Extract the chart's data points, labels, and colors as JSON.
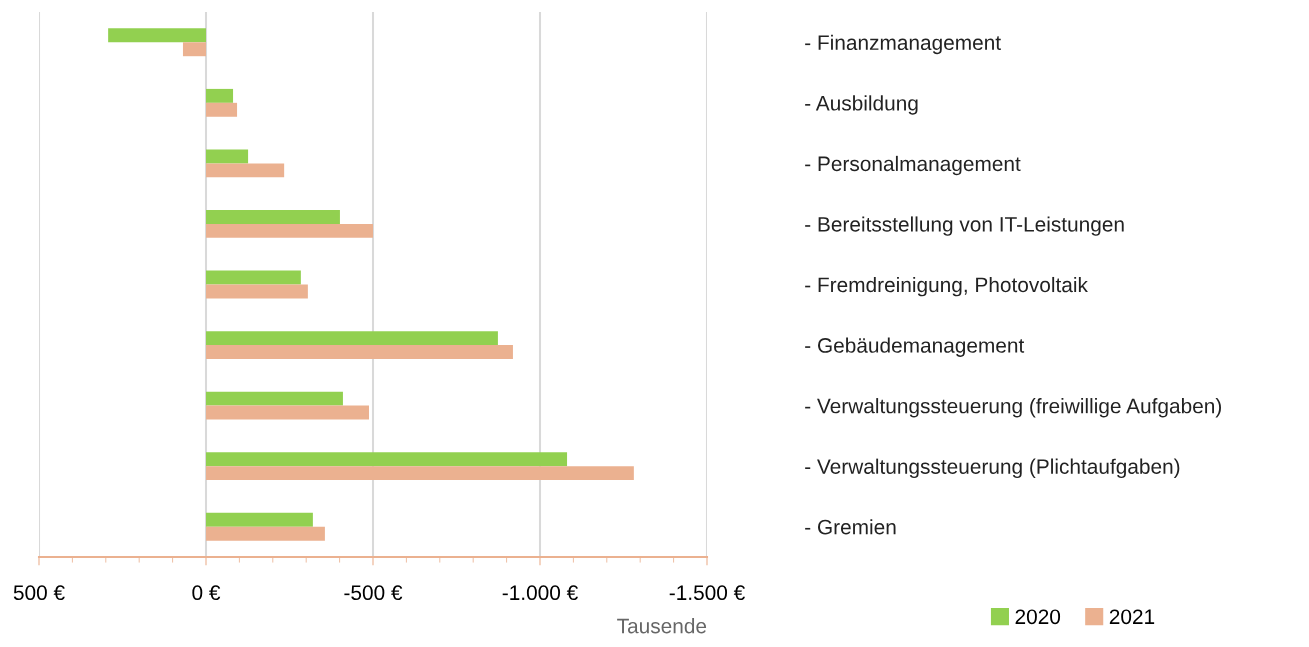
{
  "chart_data": {
    "type": "bar",
    "orientation": "horizontal",
    "categories": [
      "- Finanzmanagement",
      "- Ausbildung",
      "- Personalmanagement",
      "- Bereitsstellung von IT-Leistungen",
      "- Fremdreinigung, Photovoltaik",
      "- Gebäudemanagement",
      "- Verwaltungssteuerung (freiwillige Aufgaben)",
      "- Verwaltungssteuerung (Plichtaufgaben)",
      "- Gremien"
    ],
    "series": [
      {
        "name": "2020",
        "color": "#92d050",
        "values": [
          293,
          -81,
          -126,
          -401,
          -284,
          -874,
          -410,
          -1081,
          -320
        ]
      },
      {
        "name": "2021",
        "color": "#ebb190",
        "values": [
          69,
          -93,
          -234,
          -500,
          -305,
          -919,
          -488,
          -1281,
          -356
        ]
      }
    ],
    "xlim": [
      500,
      -1500
    ],
    "xticks": [
      {
        "value": 500,
        "label": "500 €"
      },
      {
        "value": 400,
        "label": null
      },
      {
        "value": 300,
        "label": null
      },
      {
        "value": 200,
        "label": null
      },
      {
        "value": 100,
        "label": null
      },
      {
        "value": 0,
        "label": "0 €"
      },
      {
        "value": -100,
        "label": null
      },
      {
        "value": -200,
        "label": null
      },
      {
        "value": -300,
        "label": null
      },
      {
        "value": -400,
        "label": null
      },
      {
        "value": -500,
        "label": "-500 €"
      },
      {
        "value": -600,
        "label": null
      },
      {
        "value": -700,
        "label": null
      },
      {
        "value": -800,
        "label": null
      },
      {
        "value": -900,
        "label": null
      },
      {
        "value": -1000,
        "label": "-1.000 €"
      },
      {
        "value": -1100,
        "label": null
      },
      {
        "value": -1200,
        "label": null
      },
      {
        "value": -1300,
        "label": null
      },
      {
        "value": -1400,
        "label": null
      },
      {
        "value": -1500,
        "label": "-1.500 €"
      }
    ],
    "xlabel": "Tausende",
    "grid": "x",
    "legend": "bottom right"
  }
}
